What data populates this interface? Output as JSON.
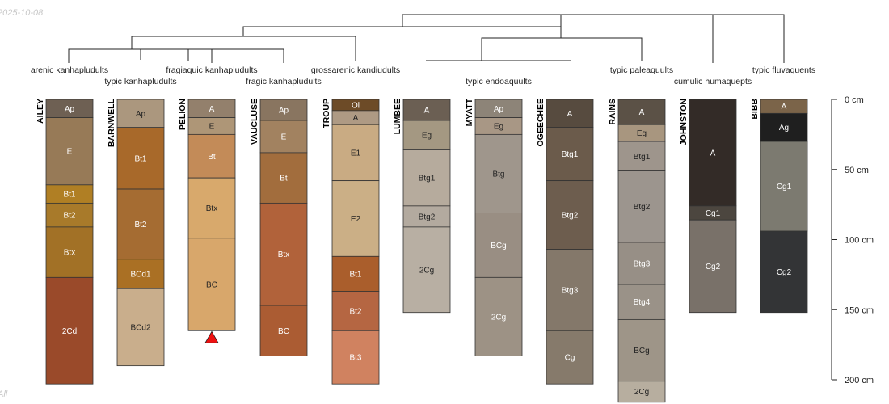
{
  "header": {
    "date": "2025-10-08",
    "footer": "All"
  },
  "taxa": [
    {
      "name": "arenic kanhapludults"
    },
    {
      "name": "typic kanhapludults"
    },
    {
      "name": "fragiaquic kanhapludults"
    },
    {
      "name": "fragic kanhapludults"
    },
    {
      "name": "grossarenic kandiudults"
    },
    {
      "name": "typic endoaquults"
    },
    {
      "name": "typic paleaquults"
    },
    {
      "name": "cumulic humaquepts"
    },
    {
      "name": "typic fluvaquents"
    }
  ],
  "depth_axis": {
    "unit": "cm",
    "ticks": [
      {
        "depth": 0,
        "label": "0 cm"
      },
      {
        "depth": 50,
        "label": "50 cm"
      },
      {
        "depth": 100,
        "label": "100 cm"
      },
      {
        "depth": 150,
        "label": "150 cm"
      },
      {
        "depth": 200,
        "label": "200 cm"
      }
    ]
  },
  "profiles": [
    {
      "name": "AILEY",
      "horizons": [
        {
          "name": "Ap",
          "top": 0,
          "bottom": 13,
          "color": "#6e6053"
        },
        {
          "name": "E",
          "top": 13,
          "bottom": 61,
          "color": "#977a57"
        },
        {
          "name": "Bt1",
          "top": 61,
          "bottom": 74,
          "color": "#b07f24"
        },
        {
          "name": "Bt2",
          "top": 74,
          "bottom": 91,
          "color": "#a87a2a"
        },
        {
          "name": "Btx",
          "top": 91,
          "bottom": 127,
          "color": "#a27126"
        },
        {
          "name": "2Cd",
          "top": 127,
          "bottom": 203,
          "color": "#9a4a2a"
        }
      ]
    },
    {
      "name": "BARNWELL",
      "horizons": [
        {
          "name": "Ap",
          "top": 0,
          "bottom": 20,
          "color": "#ab977e"
        },
        {
          "name": "Bt1",
          "top": 20,
          "bottom": 64,
          "color": "#a8692a"
        },
        {
          "name": "Bt2",
          "top": 64,
          "bottom": 114,
          "color": "#a56c32"
        },
        {
          "name": "BCd1",
          "top": 114,
          "bottom": 135,
          "color": "#aa7024"
        },
        {
          "name": "BCd2",
          "top": 135,
          "bottom": 190,
          "color": "#c9ae8c"
        }
      ]
    },
    {
      "name": "PELION",
      "horizons": [
        {
          "name": "A",
          "top": 0,
          "bottom": 13,
          "color": "#93806c"
        },
        {
          "name": "E",
          "top": 13,
          "bottom": 25,
          "color": "#ae9677"
        },
        {
          "name": "Bt",
          "top": 25,
          "bottom": 56,
          "color": "#c38b58"
        },
        {
          "name": "Btx",
          "top": 56,
          "bottom": 99,
          "color": "#d8a96c"
        },
        {
          "name": "BC",
          "top": 99,
          "bottom": 165,
          "color": "#d8a76b"
        }
      ]
    },
    {
      "name": "VAUCLUSE",
      "horizons": [
        {
          "name": "Ap",
          "top": 0,
          "bottom": 15,
          "color": "#897560"
        },
        {
          "name": "E",
          "top": 15,
          "bottom": 38,
          "color": "#a28260"
        },
        {
          "name": "Bt",
          "top": 38,
          "bottom": 74,
          "color": "#a26d3d"
        },
        {
          "name": "Btx",
          "top": 74,
          "bottom": 147,
          "color": "#b1623a"
        },
        {
          "name": "BC",
          "top": 147,
          "bottom": 183,
          "color": "#ab5c33"
        }
      ]
    },
    {
      "name": "TROUP",
      "horizons": [
        {
          "name": "Oi",
          "top": 0,
          "bottom": 8,
          "color": "#6d4b27"
        },
        {
          "name": "A",
          "top": 8,
          "bottom": 18,
          "color": "#ae9a84"
        },
        {
          "name": "E1",
          "top": 18,
          "bottom": 58,
          "color": "#c9ab83"
        },
        {
          "name": "E2",
          "top": 58,
          "bottom": 112,
          "color": "#cbaf86"
        },
        {
          "name": "Bt1",
          "top": 112,
          "bottom": 137,
          "color": "#aa5e2c"
        },
        {
          "name": "Bt2",
          "top": 137,
          "bottom": 165,
          "color": "#b56642"
        },
        {
          "name": "Bt3",
          "top": 165,
          "bottom": 203,
          "color": "#d08260"
        }
      ]
    },
    {
      "name": "LUMBEE",
      "horizons": [
        {
          "name": "A",
          "top": 0,
          "bottom": 15,
          "color": "#6b5f53"
        },
        {
          "name": "Eg",
          "top": 15,
          "bottom": 36,
          "color": "#a49882"
        },
        {
          "name": "Btg1",
          "top": 36,
          "bottom": 76,
          "color": "#b6ab9d"
        },
        {
          "name": "Btg2",
          "top": 76,
          "bottom": 91,
          "color": "#b3aa9f"
        },
        {
          "name": "2Cg",
          "top": 91,
          "bottom": 152,
          "color": "#b8afa3"
        }
      ]
    },
    {
      "name": "MYATT",
      "horizons": [
        {
          "name": "Ap",
          "top": 0,
          "bottom": 13,
          "color": "#8d8478"
        },
        {
          "name": "Eg",
          "top": 13,
          "bottom": 25,
          "color": "#a89785"
        },
        {
          "name": "Btg",
          "top": 25,
          "bottom": 81,
          "color": "#9f968c"
        },
        {
          "name": "BCg",
          "top": 81,
          "bottom": 127,
          "color": "#998e83"
        },
        {
          "name": "2Cg",
          "top": 127,
          "bottom": 183,
          "color": "#9d9285"
        }
      ]
    },
    {
      "name": "OGEECHEE",
      "horizons": [
        {
          "name": "A",
          "top": 0,
          "bottom": 20,
          "color": "#574b3f"
        },
        {
          "name": "Btg1",
          "top": 20,
          "bottom": 58,
          "color": "#6b5b4b"
        },
        {
          "name": "Btg2",
          "top": 58,
          "bottom": 107,
          "color": "#6d5d4e"
        },
        {
          "name": "Btg3",
          "top": 107,
          "bottom": 165,
          "color": "#84786a"
        },
        {
          "name": "Cg",
          "top": 165,
          "bottom": 203,
          "color": "#867a6b"
        }
      ]
    },
    {
      "name": "RAINS",
      "horizons": [
        {
          "name": "A",
          "top": 0,
          "bottom": 18,
          "color": "#5b5146"
        },
        {
          "name": "Eg",
          "top": 18,
          "bottom": 30,
          "color": "#a8967f"
        },
        {
          "name": "Btg1",
          "top": 30,
          "bottom": 51,
          "color": "#9e958c"
        },
        {
          "name": "Btg2",
          "top": 51,
          "bottom": 102,
          "color": "#9c958e"
        },
        {
          "name": "Btg3",
          "top": 102,
          "bottom": 132,
          "color": "#978f86"
        },
        {
          "name": "Btg4",
          "top": 132,
          "bottom": 157,
          "color": "#9a9288"
        },
        {
          "name": "BCg",
          "top": 157,
          "bottom": 201,
          "color": "#9e9588"
        },
        {
          "name": "2Cg",
          "top": 201,
          "bottom": 216,
          "color": "#b7ae9f"
        }
      ]
    },
    {
      "name": "JOHNSTON",
      "horizons": [
        {
          "name": "A",
          "top": 0,
          "bottom": 76,
          "color": "#332b27"
        },
        {
          "name": "Cg1",
          "top": 76,
          "bottom": 86,
          "color": "#4c463f"
        },
        {
          "name": "Cg2",
          "top": 86,
          "bottom": 152,
          "color": "#797169"
        }
      ]
    },
    {
      "name": "BIBB",
      "horizons": [
        {
          "name": "A",
          "top": 0,
          "bottom": 10,
          "color": "#7b6449"
        },
        {
          "name": "Ag",
          "top": 10,
          "bottom": 30,
          "color": "#1f1f1f"
        },
        {
          "name": "Cg1",
          "top": 30,
          "bottom": 94,
          "color": "#7c7a70"
        },
        {
          "name": "Cg2",
          "top": 94,
          "bottom": 152,
          "color": "#333436"
        }
      ]
    }
  ],
  "colors": {
    "light_text": "#ffffff",
    "dark_text": "#222222",
    "marker": "#ee1111",
    "border": "#333333"
  }
}
